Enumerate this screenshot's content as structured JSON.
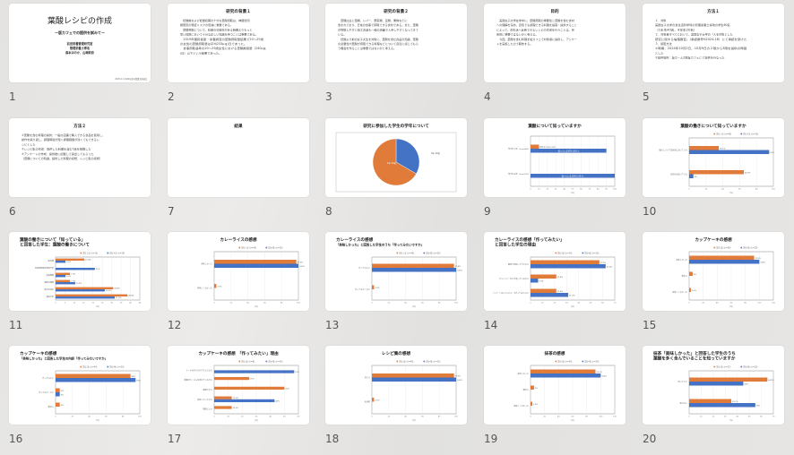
{
  "colors": {
    "orange": "#e07b39",
    "blue": "#4472c4",
    "background": "#e6e5e3"
  },
  "slides": [
    {
      "number": "1",
      "type": "title",
      "title": "葉酸レシピの作成",
      "subtitle": "ー版カフェでの提供を試みてー",
      "lines": [
        "前田栄養管理研究室",
        "管理栄養士専攻",
        "森本ほのか、山崎莉奈"
      ],
      "footer": "2025.2.1 2024年度卒業論文発表会"
    },
    {
      "number": "2",
      "type": "text",
      "title": "研究の背景１",
      "lines": [
        "　妊娠前および妊娠初期の十分な葉酸摂取は、神経管閉",
        "鎖障害の発症リスクの低減に重要である。",
        "　葉酸摂取について、妊娠の可能性がある時期よりもっと",
        "早い段階において十分な正しい知識を持つことは重要である。",
        "　2019年国民健康・栄養調査の葉酸摂取量結果で20～29歳",
        "の女性の葉酸摂取量は平均233μｇ/日であった。",
        "　食事摂取基準の20～29歳女性における葉酸推奨量（240μｇ",
        "/日）以下という結果であった。"
      ]
    },
    {
      "number": "3",
      "type": "text",
      "title": "研究の背景２",
      "lines": [
        "　葉酸は主に藻類、レバー、野菜類、豆類、果物などに",
        "含まれており、日常の食事で摂取できる食材である。また、葉酸",
        "が摂取しやすい加工食品も一般の店舗で入手しやすくなってきて",
        "いる。",
        "　妊娠より前の女子大生を対象に、葉酸を含む食品の知識、葉酸",
        "の必要性や葉酸が摂取できる料理などについて身近に感じてもら",
        "う機会を作ることは重要ではないかと考える。"
      ]
    },
    {
      "number": "4",
      "type": "text",
      "title": "目的",
      "lines": [
        "　実践女子大学在学中に、葉酸摂取の重要性と葉酸を含む食材",
        "への理解を深め、自宅でも調理できる料理を提案・提供すること",
        "によって、食生活へ反映できるレシピの作成を行うことは、将",
        "来的に重要ではないかと考える。",
        "　今回、葉酸を含む料理を坂カフェで対象者に提供し、アンケー",
        "トを実施したので報告する。"
      ]
    },
    {
      "number": "5",
      "type": "text",
      "title": "方法１",
      "lines": [
        "１．対象",
        "実践女子大学の食生活科学科の管理栄養士専攻の学生60名",
        "（1年生40名、4年生20名）",
        "２．対象者すべてにおいて、実践女子大学の「人を対象とした",
        "研究に関する倫理審査」（承認番号H2024-18）にて承認を受けた",
        "３．調査方法",
        "①時期：2024年10月2日、10月9日の２限から3限を提供の時間",
        "とした",
        "②提供場所：坂ホール2階坂カフェにて提供を行なった"
      ]
    },
    {
      "number": "6",
      "type": "text",
      "title": "方法２",
      "lines": [
        "①葉酸を含む料理の提供：一般の店舗で購入できる食品を使用し、",
        "試作を繰り返し、調理時間が短く調理経験が浅くてもできるレ",
        "シピとした",
        "②レシピ集の作成：提供した料理を含む7品を掲載した",
        "③アンケートの作成：提供後に記載して提出してもらった",
        "（葉酸についての知識、提供した料理の感想、レシピ集の感想）"
      ]
    },
    {
      "number": "7",
      "type": "text",
      "title": "結果",
      "lines": []
    },
    {
      "number": "8",
      "type": "pie",
      "title": "研究に参加した学生の学年について",
      "chart_data": {
        "type": "pie",
        "slices": [
          {
            "label": "1年 40名",
            "value": 40,
            "color": "orange"
          },
          {
            "label": "4年 20名",
            "value": 20,
            "color": "blue"
          }
        ]
      }
    },
    {
      "number": "9",
      "type": "bar",
      "title": "葉酸について知っていますか",
      "chart_data": {
        "type": "bar",
        "categories": [
          "学年1年 (n=40)",
          "学年4年 (n=20)"
        ],
        "series": [
          {
            "color": "orange",
            "values": [
              10,
              0
            ],
            "labels": [
              "知らない10% (4人)",
              ""
            ]
          },
          {
            "color": "blue",
            "values": [
              90,
              100
            ],
            "labels": [
              "知っている90% (36人)",
              "知っている100% (20人)"
            ]
          }
        ],
        "xlim": [
          0,
          100
        ],
        "ticks": [
          0,
          10,
          20,
          30,
          40,
          50,
          60,
          70,
          80,
          90,
          100
        ],
        "xlabel": "(%)",
        "inside_labels": true
      }
    },
    {
      "number": "10",
      "type": "bar",
      "title": "葉酸の働きについて知っていますか",
      "chart_data": {
        "type": "bar",
        "legend": [
          "学年１年 (n=40)",
          "学年４年 (n=20)"
        ],
        "categories": [
          "働きについて具体的に知っている",
          "名前のみ知っている"
        ],
        "series": [
          {
            "color": "orange",
            "values": [
              35.1,
              64.9
            ],
            "labels": [
              "35.1%",
              "64.9%"
            ]
          },
          {
            "color": "blue",
            "values": [
              95,
              5
            ],
            "labels": [
              "95%",
              "5%"
            ]
          }
        ],
        "xlim": [
          0,
          100
        ],
        "ticks": [
          0,
          20,
          40,
          60,
          80,
          100
        ],
        "xlabel": "(%)"
      }
    },
    {
      "number": "11",
      "type": "bar",
      "title": "葉酸の働きについて「知っている」",
      "title2": "と回答した学生：葉酸の働きについて",
      "chart_data": {
        "type": "bar",
        "legend": [
          "学年１年 (n=13)",
          "学年４年 (n=19)"
        ],
        "categories": [
          "胎児期",
          "血液神経障害発症予防",
          "造血機能",
          "細胞の増殖",
          "胎児の成長",
          "貧血予防"
        ],
        "series": [
          {
            "color": "orange",
            "values": [
              15.4,
              0,
              7.7,
              7.7,
              30.8,
              38.4
            ],
            "labels": [
              "15.4%",
              "",
              "7.7%",
              "7.7%",
              "30.8%",
              "38.4%"
            ]
          },
          {
            "color": "blue",
            "values": [
              5.3,
              21,
              5.3,
              10.5,
              26.3,
              31.6
            ],
            "labels": [
              "5.3%",
              "21%",
              "5.3%",
              "10.5%",
              "26.3%",
              "31.6%"
            ]
          }
        ],
        "xlim": [
          0,
          45
        ],
        "ticks": [
          0,
          5,
          10,
          15,
          20,
          25,
          30,
          35,
          40,
          45
        ],
        "xlabel": "(%)"
      }
    },
    {
      "number": "12",
      "type": "bar",
      "title": "カレーライスの感想",
      "chart_data": {
        "type": "bar",
        "legend": [
          "学年１年 (n=40)",
          "学年4年 (n=20)"
        ],
        "categories": [
          "美味しかった",
          "美味しくなかった"
        ],
        "series": [
          {
            "color": "orange",
            "values": [
              97.5,
              2.5
            ],
            "labels": [
              "97.5%",
              "2.5%"
            ]
          },
          {
            "color": "blue",
            "values": [
              100,
              0
            ],
            "labels": [
              "100%",
              ""
            ]
          }
        ],
        "xlim": [
          0,
          100
        ],
        "ticks": [
          0,
          20,
          40,
          60,
          80,
          100
        ],
        "xlabel": "(%)"
      }
    },
    {
      "number": "13",
      "type": "bar",
      "title": "カレーライスの感想",
      "title2": "「美味しかった」と回答した学生のうち「作ってみたいですか」",
      "chart_data": {
        "type": "bar",
        "legend": [
          "学年１年 (n=40)",
          "学年4年 (n=20)"
        ],
        "categories": [
          "作ってみたい",
          "作ってみたくない"
        ],
        "series": [
          {
            "color": "orange",
            "values": [
              97.4,
              2.5
            ],
            "labels": [
              "97.4%",
              "2.5%"
            ]
          },
          {
            "color": "blue",
            "values": [
              100,
              0
            ],
            "labels": [
              "100%",
              ""
            ]
          }
        ],
        "xlim": [
          0,
          100
        ],
        "ticks": [
          0,
          20,
          40,
          60,
          80,
          100
        ],
        "xlabel": "(%)"
      }
    },
    {
      "number": "14",
      "type": "bar",
      "title": "カレーライスの感想「作ってみたい」",
      "title2": "と回答した学生の理由",
      "chart_data": {
        "type": "bar",
        "legend": [
          "学年1年 (n=14)",
          "学年4年 (n=16)"
        ],
        "categories": [
          "簡単で美味しそうだから",
          "ブロッコリーなどを使っているから",
          "アンケートのスパイスカレーを作ってみたいから"
        ],
        "series": [
          {
            "color": "orange",
            "values": [
              57.2,
              21.4,
              21.4
            ],
            "labels": [
              "57.2%",
              "21.4%",
              "21.4%"
            ]
          },
          {
            "color": "blue",
            "values": [
              62.4,
              6.3,
              31.3
            ],
            "labels": [
              "62.4%",
              "6.3%",
              "31.3%"
            ]
          }
        ],
        "xlim": [
          0,
          70
        ],
        "ticks": [
          0,
          10,
          20,
          30,
          40,
          50,
          60,
          70
        ],
        "xlabel": "(%)"
      }
    },
    {
      "number": "15",
      "type": "bar",
      "title": "カップケーキの感想",
      "chart_data": {
        "type": "bar",
        "legend": [
          "学年1年 (n=40)",
          "学年4年 (n=20)"
        ],
        "categories": [
          "美味しかった",
          "無記入",
          "美味しくなかった"
        ],
        "series": [
          {
            "color": "orange",
            "values": [
              92.5,
              5,
              2.5
            ],
            "labels": [
              "92.5%",
              "5%",
              "2.5%"
            ]
          },
          {
            "color": "blue",
            "values": [
              100,
              0,
              0
            ],
            "labels": [
              "100%",
              "",
              ""
            ]
          }
        ],
        "xlim": [
          0,
          120
        ],
        "ticks": [
          0,
          20,
          40,
          60,
          80,
          100,
          120
        ],
        "xlabel": "(%)"
      }
    },
    {
      "number": "16",
      "type": "bar",
      "title": "カップケーキの感想",
      "title2": "「美味しかった」と回答した学生の内訳「作ってみたいですか」",
      "chart_data": {
        "type": "bar",
        "legend": [
          "学年1年 (n=40)",
          "学年4年 (n=20)"
        ],
        "categories": [
          "作ってみたい",
          "作ってみたくない",
          "無記入"
        ],
        "series": [
          {
            "color": "orange",
            "values": [
              89,
              5,
              5
            ],
            "labels": [
              "89%",
              "5%",
              "5%"
            ]
          },
          {
            "color": "blue",
            "values": [
              95,
              5,
              0
            ],
            "labels": [
              "95%",
              "5%",
              ""
            ]
          }
        ],
        "xlim": [
          0,
          100
        ],
        "ticks": [
          0,
          20,
          40,
          60,
          80,
          100
        ],
        "xlabel": "(%)"
      }
    },
    {
      "number": "17",
      "type": "bar",
      "title": "カップケーキの感想　「作ってみたい」理由",
      "chart_data": {
        "type": "bar",
        "legend": [
          "学年1年 (n=8)",
          "学年4年 (n=14)"
        ],
        "categories": [
          "ケーキの作り方がすすんだから",
          "葉酸がたくさん含まれているから",
          "簡単だから",
          "美味しかったから",
          "健康にいい"
        ],
        "series": [
          {
            "color": "orange",
            "values": [
              0,
              25,
              50,
              12.5,
              12.5
            ],
            "labels": [
              "",
              "25%",
              "50%",
              "12.5%",
              "12.5%"
            ]
          },
          {
            "color": "blue",
            "values": [
              57,
              0,
              0,
              43,
              0
            ],
            "labels": [
              "57%",
              "",
              "",
              "43%",
              ""
            ]
          }
        ],
        "xlim": [
          0,
          60
        ],
        "ticks": [
          0,
          10,
          20,
          30,
          40,
          50,
          60
        ],
        "xlabel": "(%)"
      }
    },
    {
      "number": "18",
      "type": "bar",
      "title": "レシピ集の感想",
      "chart_data": {
        "type": "bar",
        "legend": [
          "学年1年 (n=40)",
          "学年4年 (n=20)"
        ],
        "categories": [
          "見たら",
          "未回答"
        ],
        "series": [
          {
            "color": "orange",
            "values": [
              97.5,
              2.5
            ],
            "labels": [
              "97.5%",
              "2.5%"
            ]
          },
          {
            "color": "blue",
            "values": [
              100,
              0
            ],
            "labels": [
              "100%",
              ""
            ]
          }
        ],
        "xlim": [
          0,
          100
        ],
        "ticks": [
          0,
          20,
          40,
          60,
          80,
          100
        ],
        "xlabel": "(%)"
      }
    },
    {
      "number": "19",
      "type": "bar",
      "title": "抹茶の感想",
      "chart_data": {
        "type": "bar",
        "legend": [
          "学年1年 (n=40)",
          "学年4年 (n=20)"
        ],
        "categories": [
          "美味しかった",
          "無記入",
          "美味しくなかった"
        ],
        "series": [
          {
            "color": "orange",
            "values": [
              92.5,
              5,
              2.5
            ],
            "labels": [
              "92.5%",
              "5%",
              "2.5%"
            ]
          },
          {
            "color": "blue",
            "values": [
              100,
              0,
              0
            ],
            "labels": [
              "100%",
              "",
              ""
            ]
          }
        ],
        "xlim": [
          0,
          120
        ],
        "ticks": [
          0,
          20,
          40,
          60,
          80,
          100,
          120
        ],
        "xlabel": "(%)"
      }
    },
    {
      "number": "20",
      "type": "bar",
      "title": "抹茶「美味しかった」と回答した学生のうち",
      "title2": "葉酸を多く含んでいることを知っていますか",
      "chart_data": {
        "type": "bar",
        "legend": [
          "学年1年 (n=37)",
          "学年4年 (n=20)"
        ],
        "categories": [
          "知っていた",
          "知らない"
        ],
        "series": [
          {
            "color": "orange",
            "values": [
              65,
              35
            ],
            "labels": [
              "64.9%",
              "35.1%"
            ]
          },
          {
            "color": "blue",
            "values": [
              45,
              55
            ],
            "labels": [
              "45%",
              "55%"
            ]
          }
        ],
        "xlim": [
          0,
          70
        ],
        "ticks": [
          0,
          10,
          20,
          30,
          40,
          50,
          60,
          70
        ],
        "xlabel": "(%)"
      }
    }
  ]
}
